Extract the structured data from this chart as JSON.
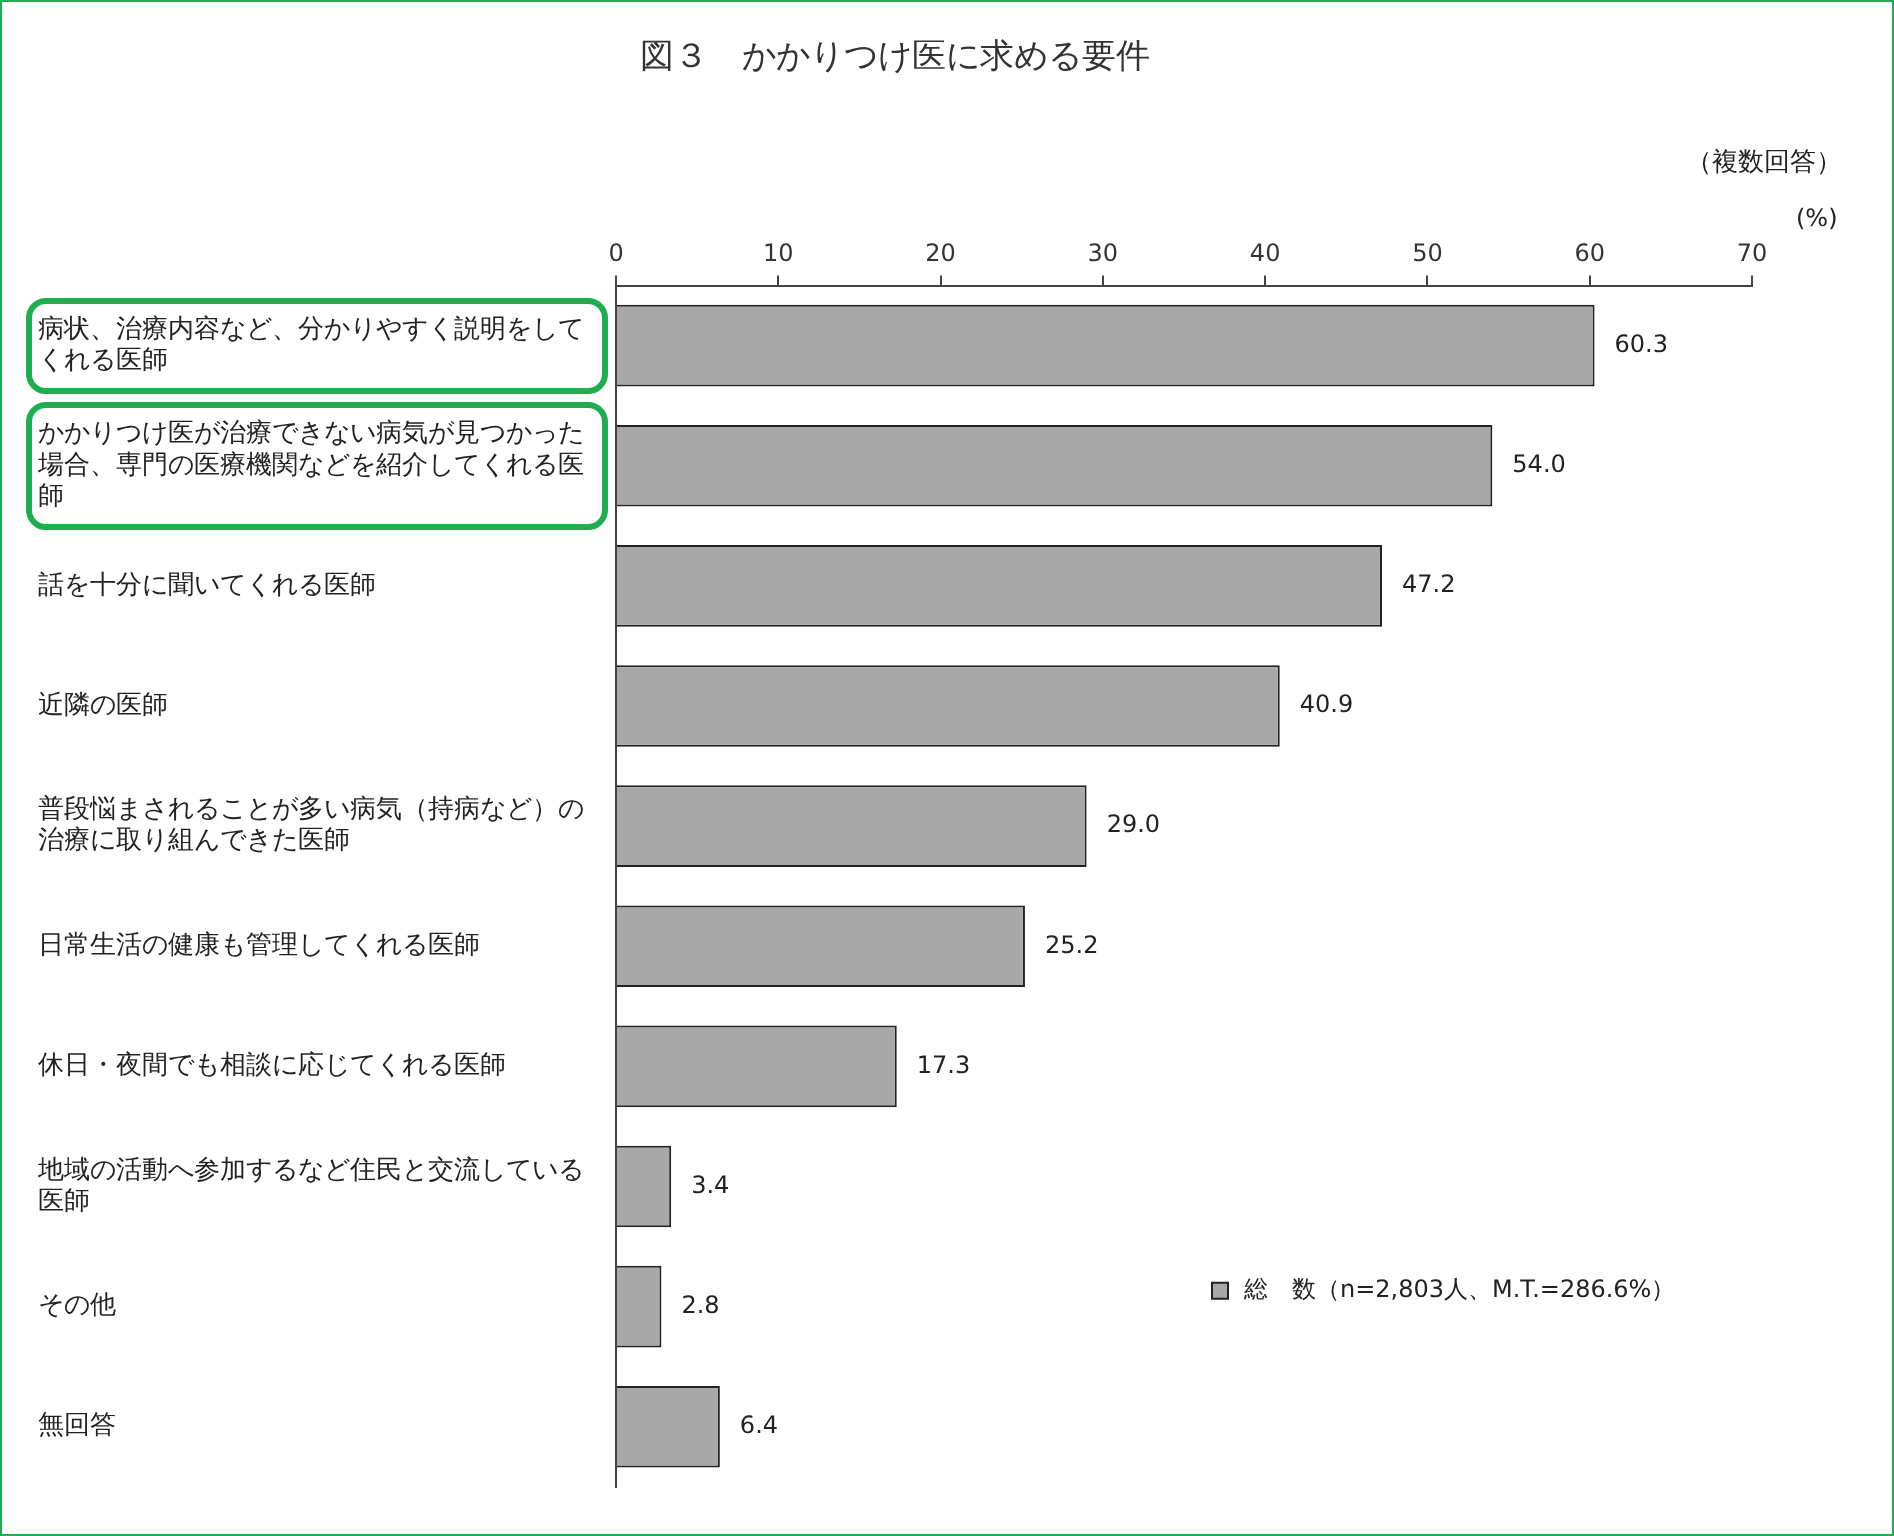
{
  "chart_data": {
    "type": "bar",
    "orientation": "horizontal",
    "title": "図３　かかりつけ医に求める要件",
    "xlabel": "(%)",
    "annotations": [
      "（複数回答）"
    ],
    "categories": [
      "病状、治療内容など、分かりやすく説明をしてくれる医師",
      "かかりつけ医が治療できない病気が見つかった場合、専門の医療機関などを紹介してくれる医師",
      "話を十分に聞いてくれる医師",
      "近隣の医師",
      "普段悩まされることが多い病気（持病など）の治療に取り組んできた医師",
      "日常生活の健康も管理してくれる医師",
      "休日・夜間でも相談に応じてくれる医師",
      "地域の活動へ参加するなど住民と交流している医師",
      "その他",
      "無回答"
    ],
    "series": [
      {
        "name": "総　数（n=2,803人、M.T.=286.6%）",
        "color": "#a8a8a8",
        "values": [
          60.3,
          54.0,
          47.2,
          40.9,
          29.0,
          25.2,
          17.3,
          3.4,
          2.8,
          6.4
        ],
        "value_labels": [
          "60.3",
          "54.0",
          "47.2",
          "40.9",
          "29.0",
          "25.2",
          "17.3",
          "3.4",
          "2.8",
          "6.4"
        ]
      }
    ],
    "xlim": [
      0,
      70
    ],
    "xticks": [
      0,
      10,
      20,
      30,
      40,
      50,
      60,
      70
    ],
    "grid": false,
    "legend": "bottom right"
  }
}
